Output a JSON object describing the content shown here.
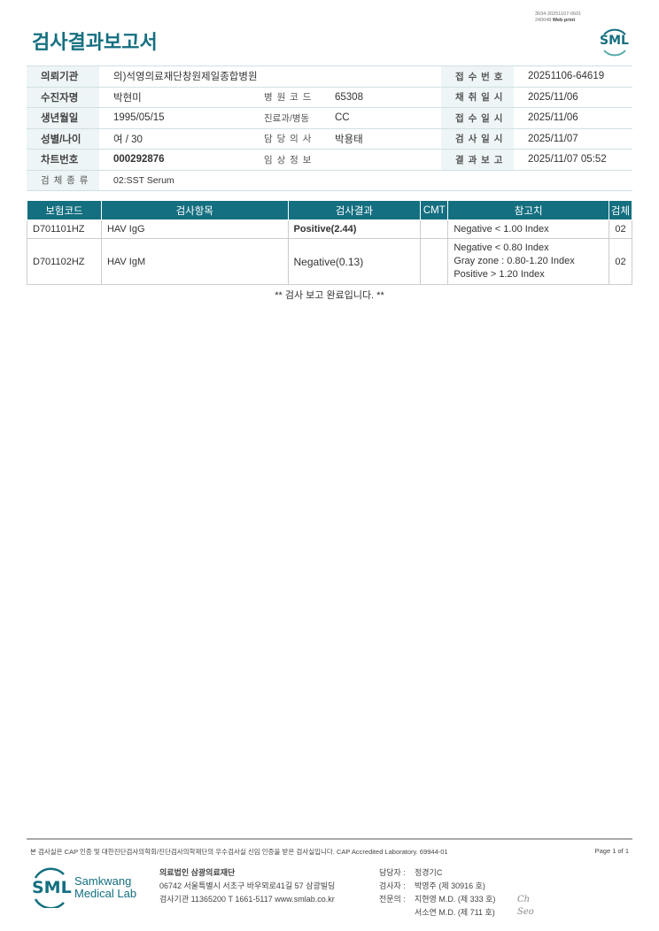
{
  "header": {
    "title": "검사결과보고서",
    "print_id_line1": "3034-20251107-0601",
    "print_id_line2": "240048",
    "print_mode": "Web print",
    "logo_text": "SML"
  },
  "info": {
    "rows": [
      [
        {
          "label": "의뢰기관",
          "value": "의)석영의료재단창원제일종합병원"
        },
        {
          "label": "",
          "value": ""
        },
        {
          "label": "접 수 번 호",
          "value": "20251106-64619"
        }
      ],
      [
        {
          "label": "수진자명",
          "value": "박현미"
        },
        {
          "label": "병 원 코 드",
          "value": "65308"
        },
        {
          "label": "채 취 일 시",
          "value": "2025/11/06"
        }
      ],
      [
        {
          "label": "생년월일",
          "value": "1995/05/15"
        },
        {
          "label": "진료과/병동",
          "value": "CC"
        },
        {
          "label": "접 수 일 시",
          "value": "2025/11/06"
        }
      ],
      [
        {
          "label": "성별/나이",
          "value": "여 / 30"
        },
        {
          "label": "담 당 의 사",
          "value": "박용태"
        },
        {
          "label": "검 사 일 시",
          "value": "2025/11/07"
        }
      ],
      [
        {
          "label": "차트번호",
          "value": "000292876"
        },
        {
          "label": "임 상 정 보",
          "value": ""
        },
        {
          "label": "결 과 보 고",
          "value": "2025/11/07 05:52"
        }
      ]
    ],
    "specimen": {
      "label": "검 체 종 류",
      "value": "02:SST Serum"
    }
  },
  "results": {
    "headers": [
      "보험코드",
      "검사항목",
      "검사결과",
      "CMT",
      "참고치",
      "검체"
    ],
    "rows": [
      {
        "code": "D701101HZ",
        "item": "HAV IgG",
        "result": "Positive(2.44)",
        "cmt": "",
        "ref": [
          "Negative < 1.00 Index"
        ],
        "specimen": "02",
        "abnormal": true
      },
      {
        "code": "D701102HZ",
        "item": "HAV IgM",
        "result": "Negative(0.13)",
        "cmt": "",
        "ref": [
          "Negative < 0.80 Index",
          "Gray zone : 0.80-1.20 Index",
          "Positive > 1.20 Index"
        ],
        "specimen": "02",
        "abnormal": false
      }
    ],
    "completion": "** 검사 보고 완료입니다. **"
  },
  "footer": {
    "accreditation": "본 검사실은 CAP 인증 및 대한진단검사의학회/진단검사의학재단의 우수검사실 신임 인증을 받은 검사실입니다.  CAP Accredited Laboratory. 69944-01",
    "page": "Page 1 of 1",
    "logo_text": "SML",
    "logo_name1": "Samkwang",
    "logo_name2": "Medical Lab",
    "org": "의료법인 삼광의료재단",
    "address": "06742 서울특별시 서초구 바우뫼로41길 57 삼광빌딩",
    "contact": "검사기관 11365200  T 1661-5117  www.smlab.co.kr",
    "staff": [
      {
        "label": "담당자 :",
        "value": "정경기C"
      },
      {
        "label": "검사자 :",
        "value": "박영주 (제 30916 호)"
      },
      {
        "label": "전문의 :",
        "value": "지현영 M.D. (제 333 호)"
      },
      {
        "label": "",
        "value": "서소연 M.D. (제 711 호)"
      }
    ],
    "signatures": [
      "Ch",
      "Seo"
    ]
  }
}
